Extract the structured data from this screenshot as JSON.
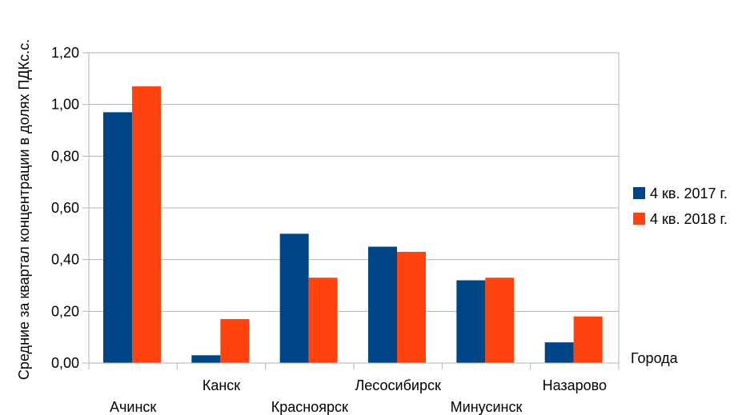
{
  "chart_data": {
    "type": "bar",
    "ylabel": "Средние за квартал концентрации в долях ПДКс.с.",
    "xlabel": "Города",
    "categories": [
      "Ачинск",
      "Канск",
      "Красноярск",
      "Лесосибирск",
      "Минусинск",
      "Назарово"
    ],
    "series": [
      {
        "name": "4 кв. 2017 г.",
        "color": "#004586",
        "values": [
          0.97,
          0.03,
          0.5,
          0.45,
          0.32,
          0.08
        ]
      },
      {
        "name": "4 кв. 2018 г.",
        "color": "#ff420e",
        "values": [
          1.07,
          0.17,
          0.33,
          0.43,
          0.33,
          0.18
        ]
      }
    ],
    "ylim": [
      0,
      1.2
    ],
    "yticks": [
      "0,00",
      "0,20",
      "0,40",
      "0,60",
      "0,80",
      "1,00",
      "1,20"
    ],
    "grid": true,
    "legend_position": "right"
  }
}
